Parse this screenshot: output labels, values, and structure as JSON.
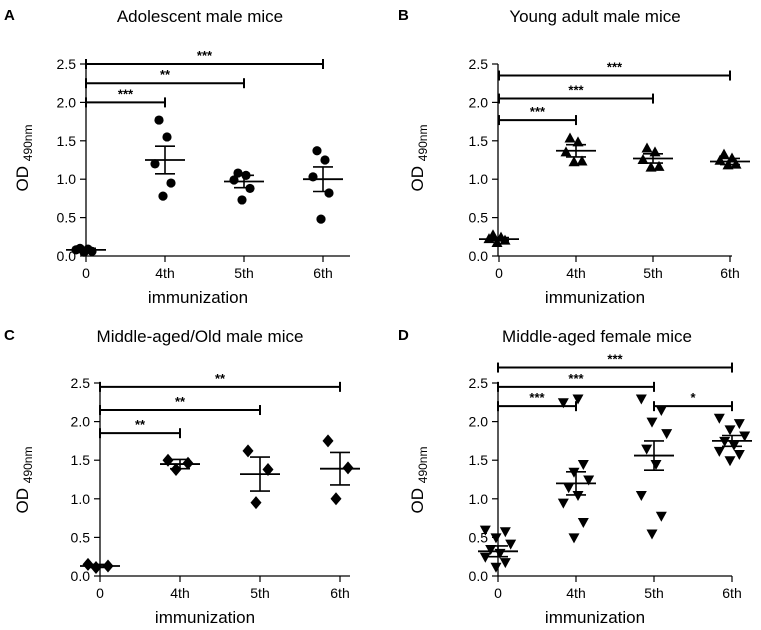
{
  "figure": {
    "background": "#ffffff",
    "ink": "#000000"
  },
  "chart_data": [
    {
      "panel": "A",
      "type": "scatter",
      "title": "Adolescent male mice",
      "xlabel": "immunization",
      "ylabel_main": "OD",
      "ylabel_sub": "490nm",
      "categories": [
        "0",
        "4th",
        "5th",
        "6th"
      ],
      "ylim": [
        0,
        2.5
      ],
      "yticks": [
        "0.0",
        "0.5",
        "1.0",
        "1.5",
        "2.0",
        "2.5"
      ],
      "marker": "circle",
      "points": [
        [
          0.05,
          0.06,
          0.08,
          0.09,
          0.1
        ],
        [
          0.78,
          0.95,
          1.2,
          1.55,
          1.77
        ],
        [
          0.73,
          0.88,
          0.99,
          1.05,
          1.08
        ],
        [
          0.48,
          0.82,
          1.03,
          1.25,
          1.37
        ]
      ],
      "mean": [
        0.08,
        1.25,
        0.97,
        1.0
      ],
      "sem": [
        0.02,
        0.18,
        0.08,
        0.16
      ],
      "significance": [
        {
          "from": 0,
          "to": 1,
          "label": "***",
          "y": 2.0
        },
        {
          "from": 0,
          "to": 2,
          "label": "**",
          "y": 2.25
        },
        {
          "from": 0,
          "to": 3,
          "label": "***",
          "y": 2.5
        }
      ]
    },
    {
      "panel": "B",
      "type": "scatter",
      "title": "Young adult male mice",
      "xlabel": "immunization",
      "ylabel_main": "OD",
      "ylabel_sub": "490nm",
      "categories": [
        "0",
        "4th",
        "5th",
        "6th"
      ],
      "ylim": [
        0,
        2.5
      ],
      "yticks": [
        "0.0",
        "0.5",
        "1.0",
        "1.5",
        "2.0",
        "2.5"
      ],
      "marker": "triangle-up",
      "points": [
        [
          0.17,
          0.2,
          0.22,
          0.24,
          0.27
        ],
        [
          1.22,
          1.23,
          1.35,
          1.48,
          1.53
        ],
        [
          1.15,
          1.16,
          1.25,
          1.35,
          1.4
        ],
        [
          1.18,
          1.19,
          1.24,
          1.27,
          1.32
        ]
      ],
      "mean": [
        0.22,
        1.37,
        1.27,
        1.23
      ],
      "sem": [
        0.02,
        0.08,
        0.06,
        0.04
      ],
      "significance": [
        {
          "from": 0,
          "to": 1,
          "label": "***",
          "y": 1.77
        },
        {
          "from": 0,
          "to": 2,
          "label": "***",
          "y": 2.05
        },
        {
          "from": 0,
          "to": 3,
          "label": "***",
          "y": 2.35
        }
      ]
    },
    {
      "panel": "C",
      "type": "scatter",
      "title": "Middle-aged/Old male mice",
      "xlabel": "immunization",
      "ylabel_main": "OD",
      "ylabel_sub": "490nm",
      "categories": [
        "0",
        "4th",
        "5th",
        "6th"
      ],
      "ylim": [
        0,
        2.5
      ],
      "yticks": [
        "0.0",
        "0.5",
        "1.0",
        "1.5",
        "2.0",
        "2.5"
      ],
      "marker": "diamond",
      "points": [
        [
          0.11,
          0.13,
          0.15
        ],
        [
          1.38,
          1.46,
          1.5
        ],
        [
          0.95,
          1.38,
          1.62
        ],
        [
          1.0,
          1.4,
          1.75
        ]
      ],
      "mean": [
        0.13,
        1.45,
        1.32,
        1.39
      ],
      "sem": [
        0.02,
        0.06,
        0.22,
        0.21
      ],
      "significance": [
        {
          "from": 0,
          "to": 1,
          "label": "**",
          "y": 1.85
        },
        {
          "from": 0,
          "to": 2,
          "label": "**",
          "y": 2.15
        },
        {
          "from": 0,
          "to": 3,
          "label": "**",
          "y": 2.45
        }
      ]
    },
    {
      "panel": "D",
      "type": "scatter",
      "title": "Middle-aged female mice",
      "xlabel": "immunization",
      "ylabel_main": "OD",
      "ylabel_sub": "490nm",
      "categories": [
        "0",
        "4th",
        "5th",
        "6th"
      ],
      "ylim": [
        0,
        2.5
      ],
      "yticks": [
        "0.0",
        "0.5",
        "1.0",
        "1.5",
        "2.0",
        "2.5"
      ],
      "marker": "triangle-down",
      "points": [
        [
          0.12,
          0.18,
          0.25,
          0.3,
          0.35,
          0.42,
          0.5,
          0.58,
          0.6
        ],
        [
          0.5,
          0.7,
          0.95,
          1.05,
          1.15,
          1.25,
          1.35,
          1.45,
          2.25,
          2.3
        ],
        [
          0.55,
          0.78,
          1.05,
          1.45,
          1.65,
          1.85,
          2.0,
          2.15,
          2.3
        ],
        [
          1.5,
          1.58,
          1.62,
          1.7,
          1.75,
          1.82,
          1.9,
          1.98,
          2.05
        ]
      ],
      "mean": [
        0.32,
        1.2,
        1.56,
        1.75
      ],
      "sem": [
        0.07,
        0.15,
        0.19,
        0.07
      ],
      "significance": [
        {
          "from": 0,
          "to": 1,
          "label": "***",
          "y": 2.2
        },
        {
          "from": 0,
          "to": 2,
          "label": "***",
          "y": 2.45
        },
        {
          "from": 0,
          "to": 3,
          "label": "***",
          "y": 2.7
        },
        {
          "from": 2,
          "to": 3,
          "label": "*",
          "y": 2.2
        }
      ]
    }
  ]
}
